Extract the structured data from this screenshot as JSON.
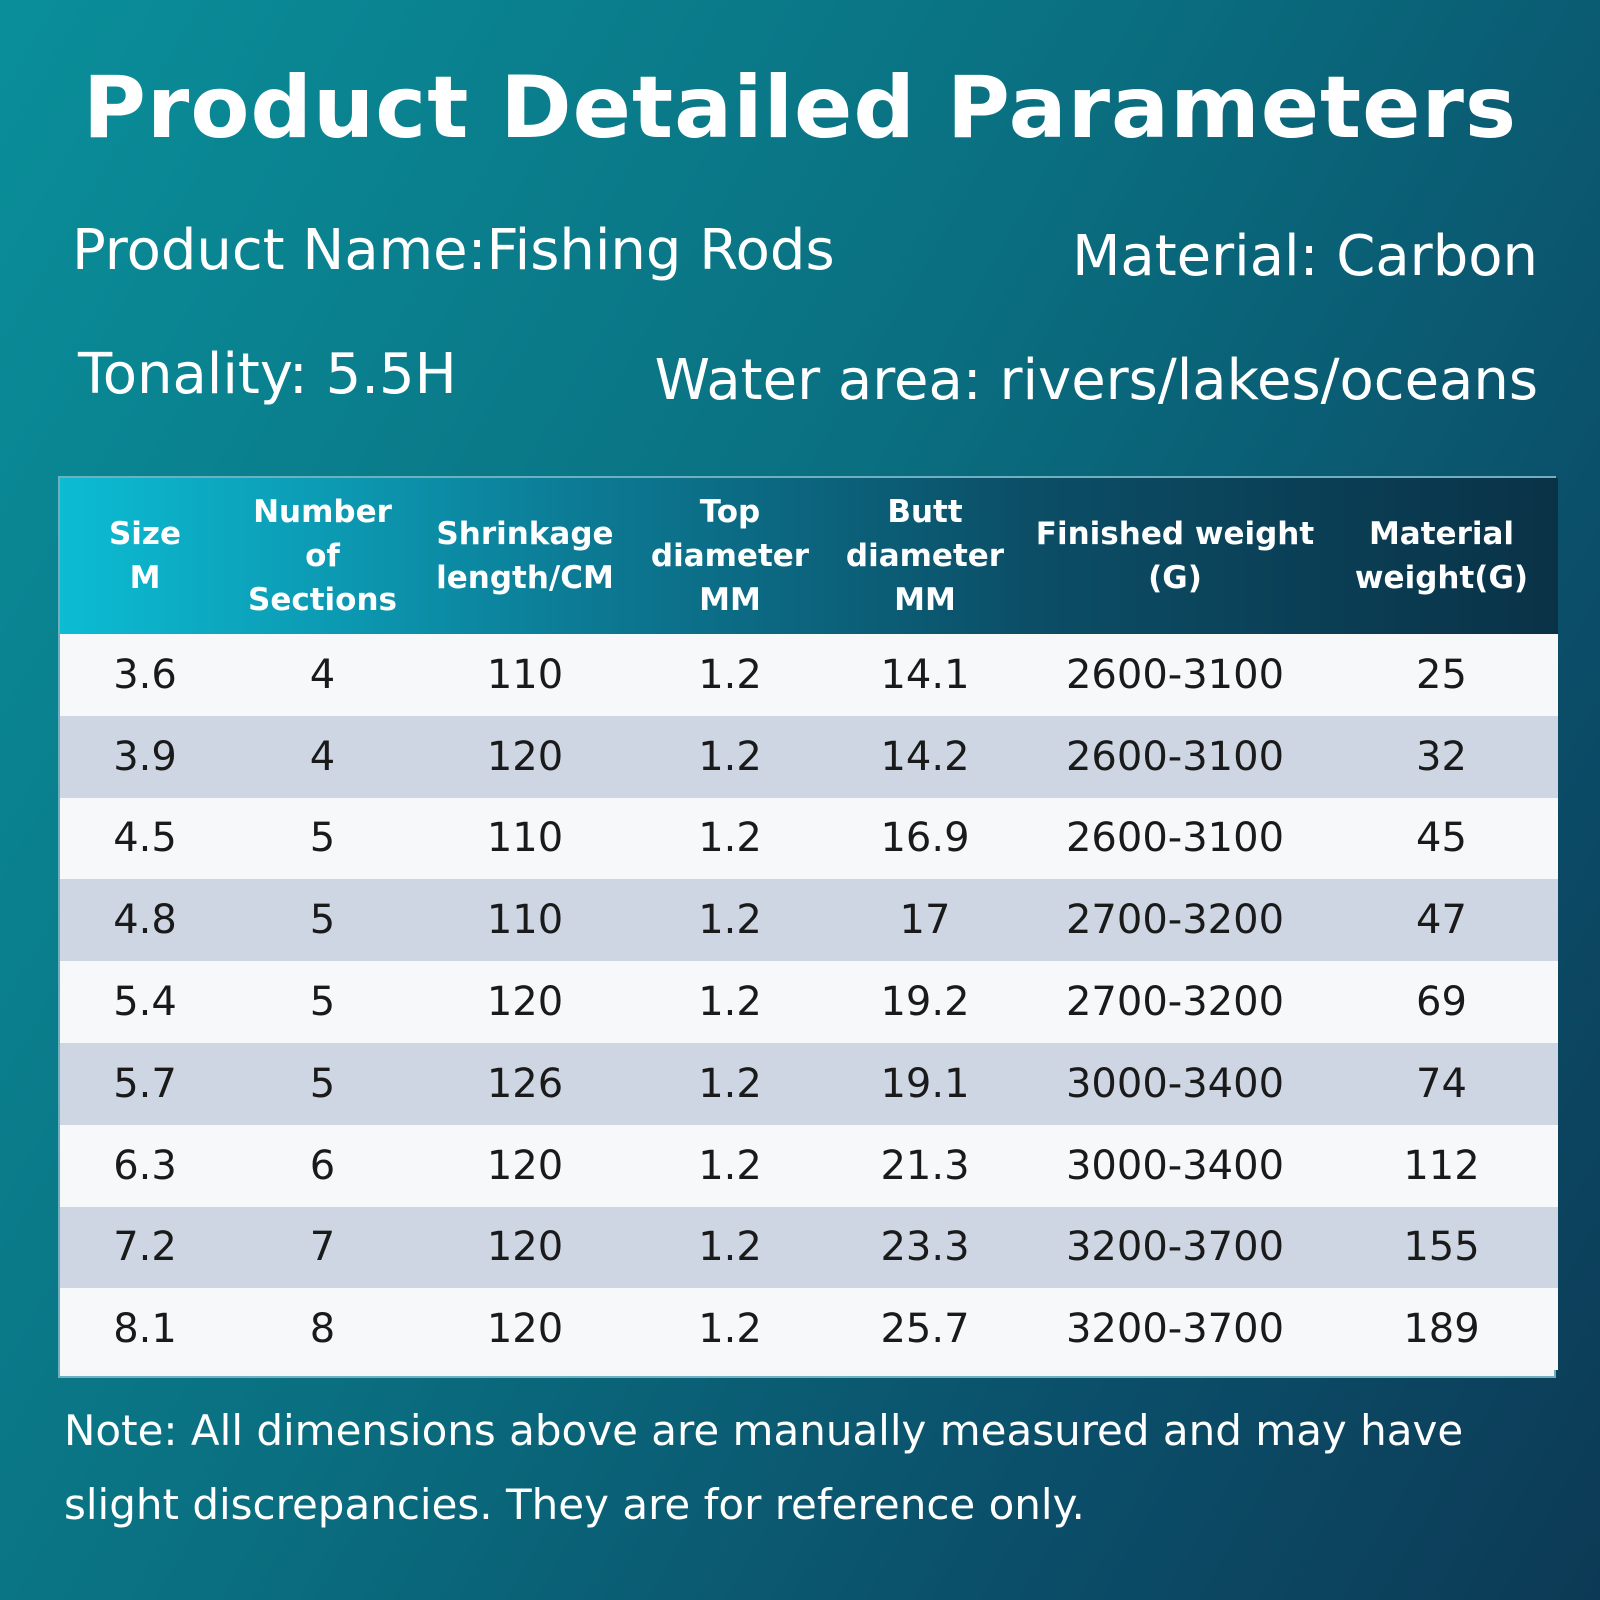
{
  "title": "Product Detailed Parameters",
  "info": {
    "product_name": "Product Name:Fishing Rods",
    "material": "Material: Carbon",
    "tonality": "Tonality: 5.5H",
    "water_area": "Water area: rivers/lakes/oceans"
  },
  "table": {
    "headers": [
      [
        "Size",
        "M"
      ],
      [
        "Number of",
        "Sections"
      ],
      [
        "Shrinkage",
        "length/CM"
      ],
      [
        "Top",
        "diameter",
        "MM"
      ],
      [
        "Butt",
        "diameter",
        "MM"
      ],
      [
        "Finished weight",
        "(G)"
      ],
      [
        "Material",
        "weight(G)"
      ]
    ],
    "rows": [
      [
        "3.6",
        "4",
        "110",
        "1.2",
        "14.1",
        "2600-3100",
        "25"
      ],
      [
        "3.9",
        "4",
        "120",
        "1.2",
        "14.2",
        "2600-3100",
        "32"
      ],
      [
        "4.5",
        "5",
        "110",
        "1.2",
        "16.9",
        "2600-3100",
        "45"
      ],
      [
        "4.8",
        "5",
        "110",
        "1.2",
        "17",
        "2700-3200",
        "47"
      ],
      [
        "5.4",
        "5",
        "120",
        "1.2",
        "19.2",
        "2700-3200",
        "69"
      ],
      [
        "5.7",
        "5",
        "126",
        "1.2",
        "19.1",
        "3000-3400",
        "74"
      ],
      [
        "6.3",
        "6",
        "120",
        "1.2",
        "21.3",
        "3000-3400",
        "112"
      ],
      [
        "7.2",
        "7",
        "120",
        "1.2",
        "23.3",
        "3200-3700",
        "155"
      ],
      [
        "8.1",
        "8",
        "120",
        "1.2",
        "25.7",
        "3200-3700",
        "189"
      ]
    ]
  },
  "note": "Note: All dimensions above are manually measured and may have slight discrepancies. They are for reference only."
}
